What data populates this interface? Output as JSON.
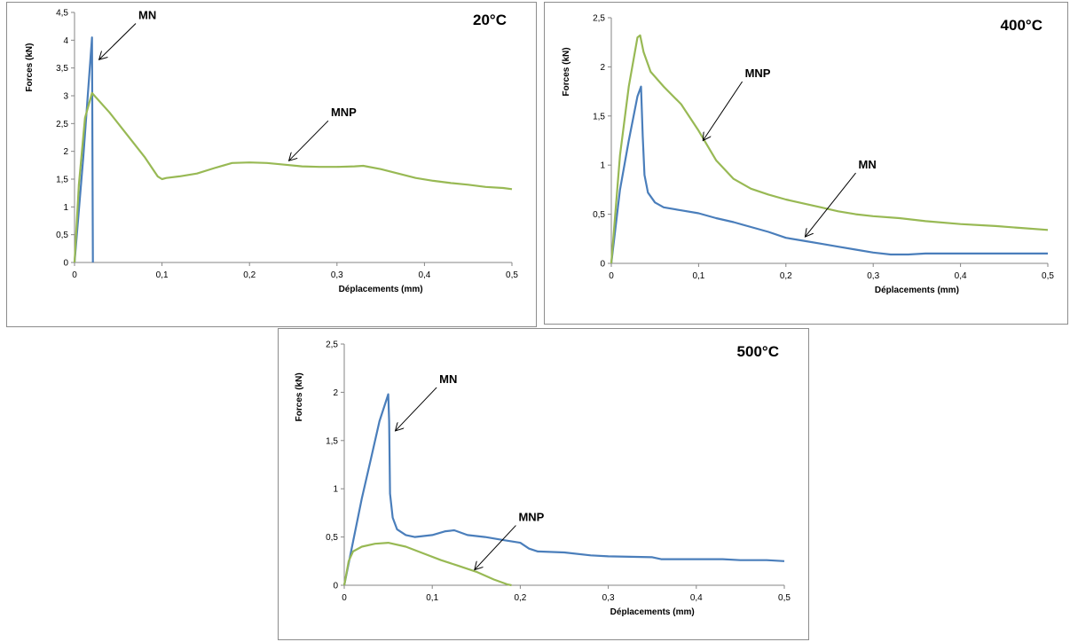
{
  "chart_data": [
    {
      "type": "line",
      "title": "20°C",
      "xlabel": "Déplacements (mm)",
      "ylabel": "Forces (kN)",
      "xlim": [
        0,
        0.5
      ],
      "ylim": [
        0,
        4.5
      ],
      "xticks": [
        "0",
        "0,1",
        "0,2",
        "0,3",
        "0,4",
        "0,5"
      ],
      "yticks": [
        "0",
        "0,5",
        "1",
        "1,5",
        "2",
        "2,5",
        "3",
        "3,5",
        "4",
        "4,5"
      ],
      "legend": "none",
      "grid": false,
      "series": [
        {
          "name": "MN",
          "color": "#4a7ebb",
          "points": [
            [
              0,
              0
            ],
            [
              0.01,
              1.9
            ],
            [
              0.02,
              4.05
            ],
            [
              0.021,
              0
            ]
          ]
        },
        {
          "name": "MNP",
          "color": "#98b954",
          "points": [
            [
              0,
              0
            ],
            [
              0.005,
              1.4
            ],
            [
              0.012,
              2.6
            ],
            [
              0.02,
              3.05
            ],
            [
              0.04,
              2.7
            ],
            [
              0.06,
              2.3
            ],
            [
              0.08,
              1.9
            ],
            [
              0.095,
              1.55
            ],
            [
              0.1,
              1.5
            ],
            [
              0.105,
              1.52
            ],
            [
              0.12,
              1.55
            ],
            [
              0.14,
              1.6
            ],
            [
              0.16,
              1.7
            ],
            [
              0.18,
              1.79
            ],
            [
              0.2,
              1.8
            ],
            [
              0.22,
              1.79
            ],
            [
              0.24,
              1.76
            ],
            [
              0.26,
              1.73
            ],
            [
              0.28,
              1.72
            ],
            [
              0.3,
              1.72
            ],
            [
              0.32,
              1.73
            ],
            [
              0.33,
              1.74
            ],
            [
              0.35,
              1.68
            ],
            [
              0.37,
              1.6
            ],
            [
              0.39,
              1.52
            ],
            [
              0.41,
              1.47
            ],
            [
              0.43,
              1.43
            ],
            [
              0.45,
              1.4
            ],
            [
              0.47,
              1.36
            ],
            [
              0.49,
              1.34
            ],
            [
              0.5,
              1.32
            ]
          ]
        }
      ],
      "annotations": [
        {
          "text": "MN",
          "from": [
            0.07,
            4.3
          ],
          "to": [
            0.028,
            3.65
          ]
        },
        {
          "text": "MNP",
          "from": [
            0.29,
            2.55
          ],
          "to": [
            0.245,
            1.83
          ]
        }
      ]
    },
    {
      "type": "line",
      "title": "400°C",
      "xlabel": "Déplacements (mm)",
      "ylabel": "Forces (kN)",
      "xlim": [
        0,
        0.5
      ],
      "ylim": [
        0,
        2.5
      ],
      "xticks": [
        "0",
        "0,1",
        "0,2",
        "0,3",
        "0,4",
        "0,5"
      ],
      "yticks": [
        "0",
        "0,5",
        "1",
        "1,5",
        "2",
        "2,5"
      ],
      "legend": "none",
      "grid": false,
      "series": [
        {
          "name": "MN",
          "color": "#4a7ebb",
          "points": [
            [
              0,
              0
            ],
            [
              0.01,
              0.75
            ],
            [
              0.02,
              1.25
            ],
            [
              0.03,
              1.7
            ],
            [
              0.034,
              1.8
            ],
            [
              0.036,
              1.3
            ],
            [
              0.038,
              0.9
            ],
            [
              0.042,
              0.72
            ],
            [
              0.05,
              0.62
            ],
            [
              0.06,
              0.57
            ],
            [
              0.08,
              0.54
            ],
            [
              0.1,
              0.51
            ],
            [
              0.12,
              0.46
            ],
            [
              0.14,
              0.42
            ],
            [
              0.16,
              0.37
            ],
            [
              0.18,
              0.32
            ],
            [
              0.2,
              0.26
            ],
            [
              0.22,
              0.23
            ],
            [
              0.24,
              0.2
            ],
            [
              0.26,
              0.17
            ],
            [
              0.28,
              0.14
            ],
            [
              0.3,
              0.11
            ],
            [
              0.32,
              0.09
            ],
            [
              0.34,
              0.09
            ],
            [
              0.36,
              0.1
            ],
            [
              0.4,
              0.1
            ],
            [
              0.45,
              0.1
            ],
            [
              0.5,
              0.1
            ]
          ]
        },
        {
          "name": "MNP",
          "color": "#98b954",
          "points": [
            [
              0,
              0
            ],
            [
              0.01,
              1.1
            ],
            [
              0.02,
              1.8
            ],
            [
              0.03,
              2.3
            ],
            [
              0.033,
              2.32
            ],
            [
              0.037,
              2.15
            ],
            [
              0.045,
              1.95
            ],
            [
              0.06,
              1.8
            ],
            [
              0.08,
              1.62
            ],
            [
              0.1,
              1.35
            ],
            [
              0.12,
              1.05
            ],
            [
              0.14,
              0.86
            ],
            [
              0.16,
              0.76
            ],
            [
              0.18,
              0.7
            ],
            [
              0.2,
              0.65
            ],
            [
              0.22,
              0.61
            ],
            [
              0.24,
              0.57
            ],
            [
              0.26,
              0.53
            ],
            [
              0.28,
              0.5
            ],
            [
              0.3,
              0.48
            ],
            [
              0.33,
              0.46
            ],
            [
              0.36,
              0.43
            ],
            [
              0.4,
              0.4
            ],
            [
              0.44,
              0.38
            ],
            [
              0.47,
              0.36
            ],
            [
              0.5,
              0.34
            ]
          ]
        }
      ],
      "annotations": [
        {
          "text": "MNP",
          "from": [
            0.15,
            1.85
          ],
          "to": [
            0.105,
            1.25
          ]
        },
        {
          "text": "MN",
          "from": [
            0.28,
            0.92
          ],
          "to": [
            0.222,
            0.27
          ]
        }
      ]
    },
    {
      "type": "line",
      "title": "500°C",
      "xlabel": "Déplacements (mm)",
      "ylabel": "Forces (kN)",
      "xlim": [
        0,
        0.5
      ],
      "ylim": [
        0,
        2.5
      ],
      "xticks": [
        "0",
        "0,1",
        "0,2",
        "0,3",
        "0,4",
        "0,5"
      ],
      "yticks": [
        "0",
        "0,5",
        "1",
        "1,5",
        "2",
        "2,5"
      ],
      "legend": "none",
      "grid": false,
      "series": [
        {
          "name": "MN",
          "color": "#4a7ebb",
          "points": [
            [
              0,
              0
            ],
            [
              0.01,
              0.45
            ],
            [
              0.02,
              0.9
            ],
            [
              0.03,
              1.3
            ],
            [
              0.04,
              1.7
            ],
            [
              0.05,
              1.98
            ],
            [
              0.051,
              1.7
            ],
            [
              0.052,
              0.95
            ],
            [
              0.055,
              0.7
            ],
            [
              0.06,
              0.58
            ],
            [
              0.07,
              0.52
            ],
            [
              0.08,
              0.5
            ],
            [
              0.1,
              0.52
            ],
            [
              0.115,
              0.56
            ],
            [
              0.125,
              0.57
            ],
            [
              0.14,
              0.52
            ],
            [
              0.16,
              0.5
            ],
            [
              0.18,
              0.47
            ],
            [
              0.2,
              0.44
            ],
            [
              0.21,
              0.38
            ],
            [
              0.22,
              0.35
            ],
            [
              0.25,
              0.34
            ],
            [
              0.28,
              0.31
            ],
            [
              0.3,
              0.3
            ],
            [
              0.35,
              0.29
            ],
            [
              0.36,
              0.27
            ],
            [
              0.4,
              0.27
            ],
            [
              0.43,
              0.27
            ],
            [
              0.45,
              0.26
            ],
            [
              0.48,
              0.26
            ],
            [
              0.5,
              0.25
            ]
          ]
        },
        {
          "name": "MNP",
          "color": "#98b954",
          "points": [
            [
              0,
              0
            ],
            [
              0.005,
              0.25
            ],
            [
              0.01,
              0.35
            ],
            [
              0.02,
              0.4
            ],
            [
              0.035,
              0.43
            ],
            [
              0.05,
              0.44
            ],
            [
              0.07,
              0.4
            ],
            [
              0.09,
              0.33
            ],
            [
              0.11,
              0.26
            ],
            [
              0.13,
              0.2
            ],
            [
              0.15,
              0.14
            ],
            [
              0.17,
              0.06
            ],
            [
              0.185,
              0.01
            ],
            [
              0.19,
              0.0
            ]
          ]
        }
      ],
      "annotations": [
        {
          "text": "MN",
          "from": [
            0.105,
            2.05
          ],
          "to": [
            0.058,
            1.6
          ]
        },
        {
          "text": "MNP",
          "from": [
            0.195,
            0.62
          ],
          "to": [
            0.148,
            0.16
          ]
        }
      ]
    }
  ]
}
